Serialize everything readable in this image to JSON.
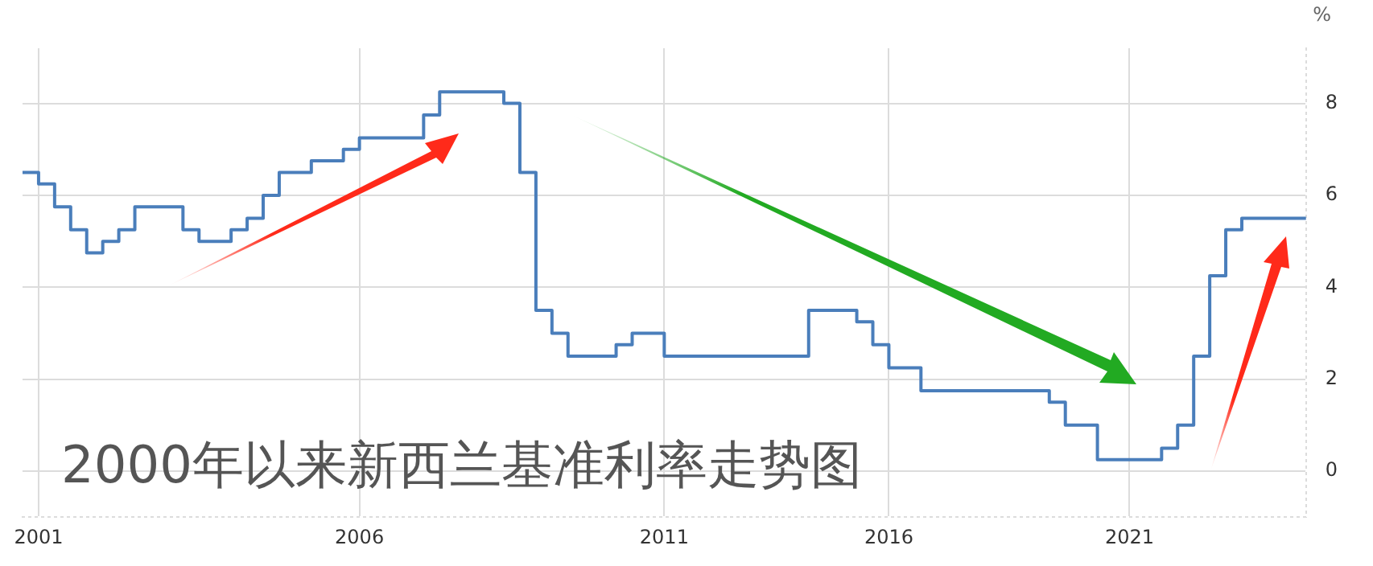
{
  "chart_data": {
    "type": "step",
    "title": "2000年以来新西兰基准利率走势图",
    "ylabel": "%",
    "categories": [
      null,
      "2001",
      null,
      null,
      null,
      null,
      null,
      null,
      null,
      null,
      null,
      null,
      null,
      null,
      null,
      null,
      null,
      null,
      null,
      null,
      null,
      "2006",
      null,
      null,
      null,
      null,
      null,
      null,
      null,
      null,
      null,
      null,
      null,
      null,
      null,
      null,
      null,
      null,
      null,
      null,
      "2011",
      null,
      null,
      null,
      null,
      null,
      null,
      null,
      null,
      null,
      null,
      null,
      null,
      null,
      "2016",
      null,
      null,
      null,
      null,
      null,
      null,
      null,
      null,
      null,
      null,
      null,
      null,
      null,
      null,
      "2021",
      null,
      null,
      null,
      null,
      null,
      null,
      null,
      null,
      null,
      null,
      null
    ],
    "series": [
      {
        "color": "#4a7ebb",
        "values": [
          6.5,
          6.5,
          6.25,
          5.75,
          5.25,
          4.75,
          5.0,
          5.25,
          5.75,
          5.75,
          5.75,
          5.25,
          5.0,
          5.0,
          5.25,
          5.5,
          6.0,
          6.5,
          6.5,
          6.75,
          6.75,
          7.0,
          7.25,
          7.25,
          7.25,
          7.25,
          7.75,
          8.25,
          8.25,
          8.25,
          8.25,
          8.0,
          6.5,
          3.5,
          3.0,
          2.5,
          2.5,
          2.5,
          2.75,
          3.0,
          3.0,
          2.5,
          2.5,
          2.5,
          2.5,
          2.5,
          2.5,
          2.5,
          2.5,
          2.5,
          3.5,
          3.5,
          3.5,
          3.25,
          2.75,
          2.25,
          2.25,
          1.75,
          1.75,
          1.75,
          1.75,
          1.75,
          1.75,
          1.75,
          1.75,
          1.5,
          1.0,
          1.0,
          0.25,
          0.25,
          0.25,
          0.25,
          0.5,
          1.0,
          2.5,
          4.25,
          5.25,
          5.5,
          5.5,
          5.5,
          5.5
        ]
      }
    ],
    "ylim": [
      -1,
      9.2
    ],
    "yticks": [
      0,
      2,
      4,
      6,
      8
    ],
    "grid": true,
    "legend": false
  }
}
